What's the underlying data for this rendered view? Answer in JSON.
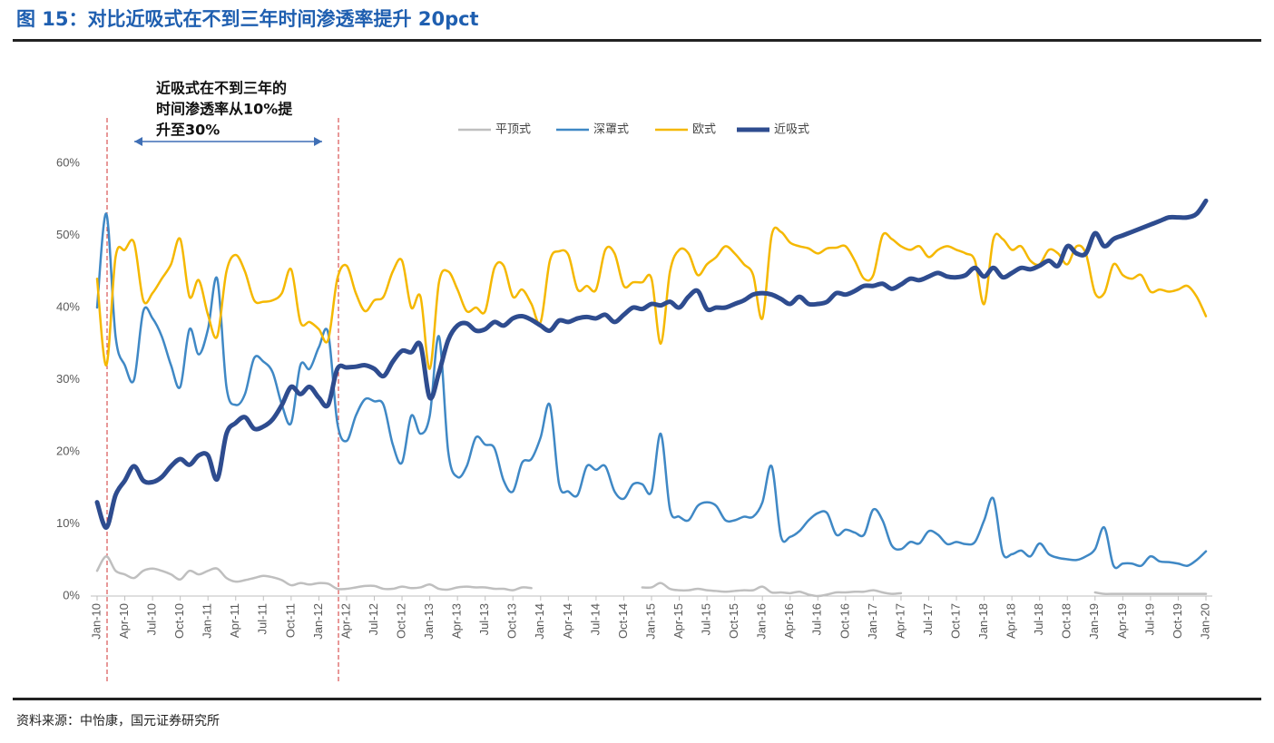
{
  "chart_data": {
    "type": "line",
    "title": "图 15：对比近吸式在不到三年时间渗透率提升 20pct",
    "source": "资料来源：中怡康，国元证券研究所",
    "annotation": [
      "近吸式在不到三年的",
      "时间渗透率从10%提",
      "升至30%"
    ],
    "categories": [
      "Jan-10",
      null,
      null,
      "Apr-10",
      null,
      null,
      "Jul-10",
      null,
      null,
      "Oct-10",
      null,
      null,
      "Jan-11",
      null,
      null,
      "Apr-11",
      null,
      null,
      "Jul-11",
      null,
      null,
      "Oct-11",
      null,
      null,
      "Jan-12",
      null,
      null,
      "Apr-12",
      null,
      null,
      "Jul-12",
      null,
      null,
      "Oct-12",
      null,
      null,
      "Jan-13",
      null,
      null,
      "Apr-13",
      null,
      null,
      "Jul-13",
      null,
      null,
      "Oct-13",
      null,
      null,
      "Jan-14",
      null,
      null,
      "Apr-14",
      null,
      null,
      "Jul-14",
      null,
      null,
      "Oct-14",
      null,
      null,
      "Jan-15",
      null,
      null,
      "Apr-15",
      null,
      null,
      "Jul-15",
      null,
      null,
      "Oct-15",
      null,
      null,
      "Jan-16",
      null,
      null,
      "Apr-16",
      null,
      null,
      "Jul-16",
      null,
      null,
      "Oct-16",
      null,
      null,
      "Jan-17",
      null,
      null,
      "Apr-17",
      null,
      null,
      "Jul-17",
      null,
      null,
      "Oct-17",
      null,
      null,
      "Jan-18",
      null,
      null,
      "Apr-18",
      null,
      null,
      "Jul-18",
      null,
      null,
      "Oct-18",
      null,
      null,
      "Jan-19",
      null,
      null,
      "Apr-19",
      null,
      null,
      "Jul-19",
      null,
      null,
      "Oct-19",
      null,
      null,
      "Jan-20"
    ],
    "series": [
      {
        "name": "平顶式",
        "color": "#bfbfbf",
        "width": 2.5,
        "values": [
          3.5,
          5.5,
          3.5,
          3,
          2.5,
          3.5,
          3.8,
          3.5,
          3,
          2.3,
          3.5,
          3,
          3.5,
          3.8,
          2.5,
          2,
          2.2,
          2.5,
          2.8,
          2.6,
          2.2,
          1.5,
          1.8,
          1.6,
          1.8,
          1.7,
          1,
          1,
          1.2,
          1.4,
          1.4,
          1,
          1,
          1.3,
          1.1,
          1.2,
          1.6,
          1,
          0.9,
          1.2,
          1.3,
          1.2,
          1.2,
          1,
          1,
          0.8,
          1.2,
          1.1,
          null,
          null,
          null,
          null,
          null,
          null,
          null,
          null,
          null,
          null,
          null,
          1.2,
          1.2,
          1.8,
          1,
          0.8,
          0.8,
          1,
          0.8,
          0.7,
          0.6,
          0.7,
          0.8,
          0.8,
          1.3,
          0.5,
          0.5,
          0.4,
          0.6,
          0.2,
          0,
          0.2,
          0.5,
          0.5,
          0.6,
          0.6,
          0.8,
          0.5,
          0.3,
          0.4,
          null,
          null,
          null,
          null,
          null,
          null,
          null,
          null,
          null,
          null,
          null,
          null,
          null,
          null,
          null,
          null,
          null,
          null,
          null,
          null,
          0.5,
          0.3,
          0.3,
          0.3,
          0.3,
          0.3,
          0.3,
          0.3,
          0.3,
          0.3,
          0.3,
          0.3,
          0.3
        ]
      },
      {
        "name": "深罩式",
        "color": "#3f88c5",
        "width": 2.5,
        "values": [
          40,
          53,
          36,
          32,
          30,
          39.5,
          38.5,
          36,
          32,
          29,
          37,
          33.5,
          37,
          44,
          29,
          26.5,
          28,
          33,
          32.5,
          31,
          26.5,
          24,
          32,
          31.5,
          34.5,
          36.5,
          24,
          21.5,
          25,
          27.3,
          27,
          26.5,
          21,
          18.5,
          25,
          22.5,
          25,
          36,
          20,
          16.5,
          18,
          22,
          21,
          20.5,
          16,
          14.5,
          18.5,
          19,
          22,
          26.5,
          15.5,
          14.5,
          14,
          18,
          17.5,
          18,
          14.5,
          13.5,
          15.5,
          15.5,
          14.5,
          22.5,
          12,
          11,
          10.5,
          12.5,
          13,
          12.5,
          10.5,
          10.5,
          11,
          11,
          13,
          18,
          8.3,
          8.2,
          9,
          10.5,
          11.5,
          11.5,
          8.5,
          9.2,
          8.8,
          8.5,
          12,
          10.5,
          7,
          6.5,
          7.5,
          7.3,
          9,
          8.5,
          7.2,
          7.5,
          7.2,
          7.5,
          10.5,
          13.5,
          6,
          5.8,
          6.3,
          5.5,
          7.3,
          5.8,
          5.3,
          5.1,
          5,
          5.5,
          6.5,
          9.5,
          4.2,
          4.5,
          4.5,
          4.2,
          5.5,
          4.8,
          4.7,
          4.5,
          4.2,
          5,
          6.2
        ]
      },
      {
        "name": "欧式",
        "color": "#f5b800",
        "width": 2.5,
        "values": [
          44,
          32,
          47,
          48,
          49,
          41,
          42,
          44,
          46,
          49.5,
          41.5,
          43.8,
          39,
          36,
          45,
          47.3,
          45,
          41,
          40.8,
          41,
          42,
          45.3,
          38,
          38,
          37,
          35.5,
          44,
          45.8,
          42,
          39.5,
          41,
          41.5,
          45,
          46.5,
          40,
          41.5,
          31.5,
          43.5,
          45,
          42.5,
          39.5,
          40,
          39.5,
          45.5,
          45.8,
          41.5,
          42.5,
          40.5,
          38,
          46.5,
          47.8,
          47.3,
          42.5,
          43,
          42.5,
          48,
          47.5,
          43,
          43.5,
          43.5,
          44,
          35,
          45,
          48,
          47.5,
          44.5,
          46,
          47,
          48.5,
          47.5,
          46,
          44.5,
          38.5,
          50,
          50.5,
          49,
          48.5,
          48.2,
          47.5,
          48.2,
          48.3,
          48.5,
          46.5,
          44,
          44.5,
          50,
          49.5,
          48.5,
          48,
          48.5,
          47,
          48,
          48.5,
          48,
          47.5,
          46.5,
          40.5,
          49.5,
          49.5,
          48,
          48.5,
          46.5,
          46,
          48,
          47.5,
          46,
          48.5,
          47.5,
          42,
          42,
          46,
          44.5,
          44,
          44.5,
          42.2,
          42.5,
          42.2,
          42.5,
          43,
          41.5,
          38.8
        ]
      },
      {
        "name": "近吸式",
        "color": "#2e4c8f",
        "width": 5,
        "values": [
          13,
          9.5,
          14,
          16,
          18,
          16,
          15.8,
          16.5,
          18,
          19,
          18.2,
          19.5,
          19.5,
          16.2,
          22.5,
          24,
          24.8,
          23.2,
          23.5,
          24.5,
          26.5,
          29,
          28,
          29,
          27.5,
          26.5,
          31.5,
          31.7,
          31.8,
          32,
          31.5,
          30.5,
          32.5,
          34,
          33.8,
          34.8,
          27.5,
          31,
          35.5,
          37.5,
          37.8,
          36.8,
          37,
          38,
          37.5,
          38.5,
          38.8,
          38.3,
          37.5,
          36.8,
          38.2,
          38,
          38.5,
          38.7,
          38.5,
          39,
          38,
          39,
          40,
          39.8,
          40.5,
          40.3,
          40.8,
          40,
          41.5,
          42.3,
          39.8,
          40,
          40,
          40.5,
          41,
          41.8,
          42,
          41.8,
          41.2,
          40.5,
          41.5,
          40.5,
          40.5,
          40.8,
          42,
          41.8,
          42.3,
          43,
          43,
          43.3,
          42.6,
          43.2,
          44,
          43.8,
          44.3,
          44.8,
          44.3,
          44.2,
          44.5,
          45.5,
          44.3,
          45.5,
          44.2,
          44.8,
          45.5,
          45.3,
          45.8,
          46.5,
          45.8,
          48.5,
          47.5,
          47.5,
          50.3,
          48.5,
          49.5,
          50,
          50.5,
          51,
          51.5,
          52,
          52.5,
          52.5,
          52.5,
          53,
          54.8
        ]
      }
    ],
    "ylim": [
      0,
      60
    ],
    "yticks": [
      {
        "value": 0,
        "label": "0%"
      },
      {
        "value": 10,
        "label": "10%"
      },
      {
        "value": 20,
        "label": "20%"
      },
      {
        "value": 30,
        "label": "30%"
      },
      {
        "value": 40,
        "label": "40%"
      },
      {
        "value": 50,
        "label": "50%"
      },
      {
        "value": 60,
        "label": "60%"
      }
    ],
    "legend": "top",
    "grid": false
  }
}
